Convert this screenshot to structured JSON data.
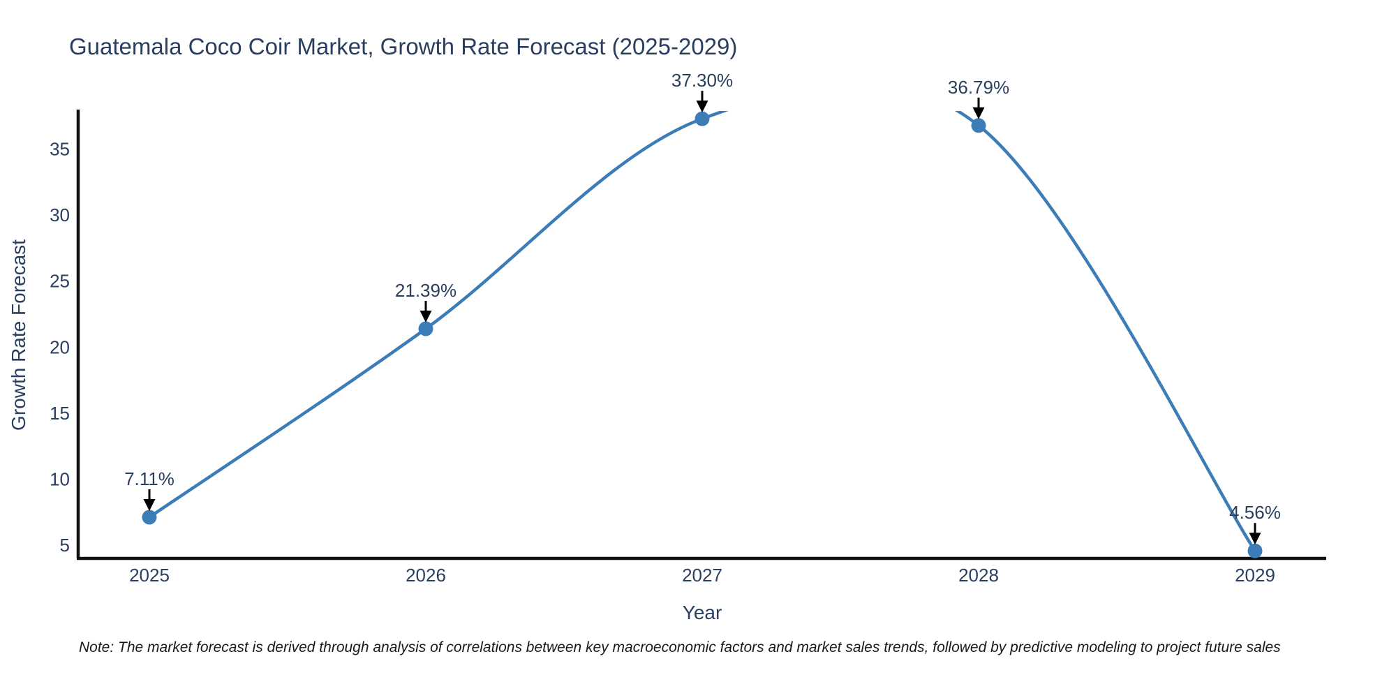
{
  "title": "Guatemala Coco Coir Market, Growth Rate Forecast (2025-2029)",
  "note": "Note: The market forecast is derived through analysis of correlations between key macroeconomic factors and market sales trends, followed by predictive modeling to project future sales",
  "chart_data": {
    "type": "line",
    "line_shape": "spline",
    "title": "Guatemala Coco Coir Market, Growth Rate Forecast (2025-2029)",
    "xlabel": "Year",
    "ylabel": "Growth Rate Forecast",
    "x": [
      2025,
      2026,
      2027,
      2028,
      2029
    ],
    "values": [
      7.11,
      21.39,
      37.3,
      36.79,
      4.56
    ],
    "point_labels": [
      "7.11%",
      "21.39%",
      "37.30%",
      "36.79%",
      "4.56%"
    ],
    "xticks": [
      "2025",
      "2026",
      "2027",
      "2028",
      "2029"
    ],
    "yticks": [
      5,
      10,
      15,
      20,
      25,
      30,
      35
    ],
    "ylim": [
      3.99,
      37.89
    ],
    "grid": false,
    "legend": "none",
    "markers": true,
    "annotations_have_arrows": true,
    "clipped_overshoot_between": [
      "2027",
      "2028"
    ],
    "colors": {
      "line": "#3c7db8",
      "marker": "#3c7db8",
      "text": "#2a3f5f",
      "axis": "#111111",
      "arrow": "#000000",
      "background": "#ffffff"
    }
  }
}
